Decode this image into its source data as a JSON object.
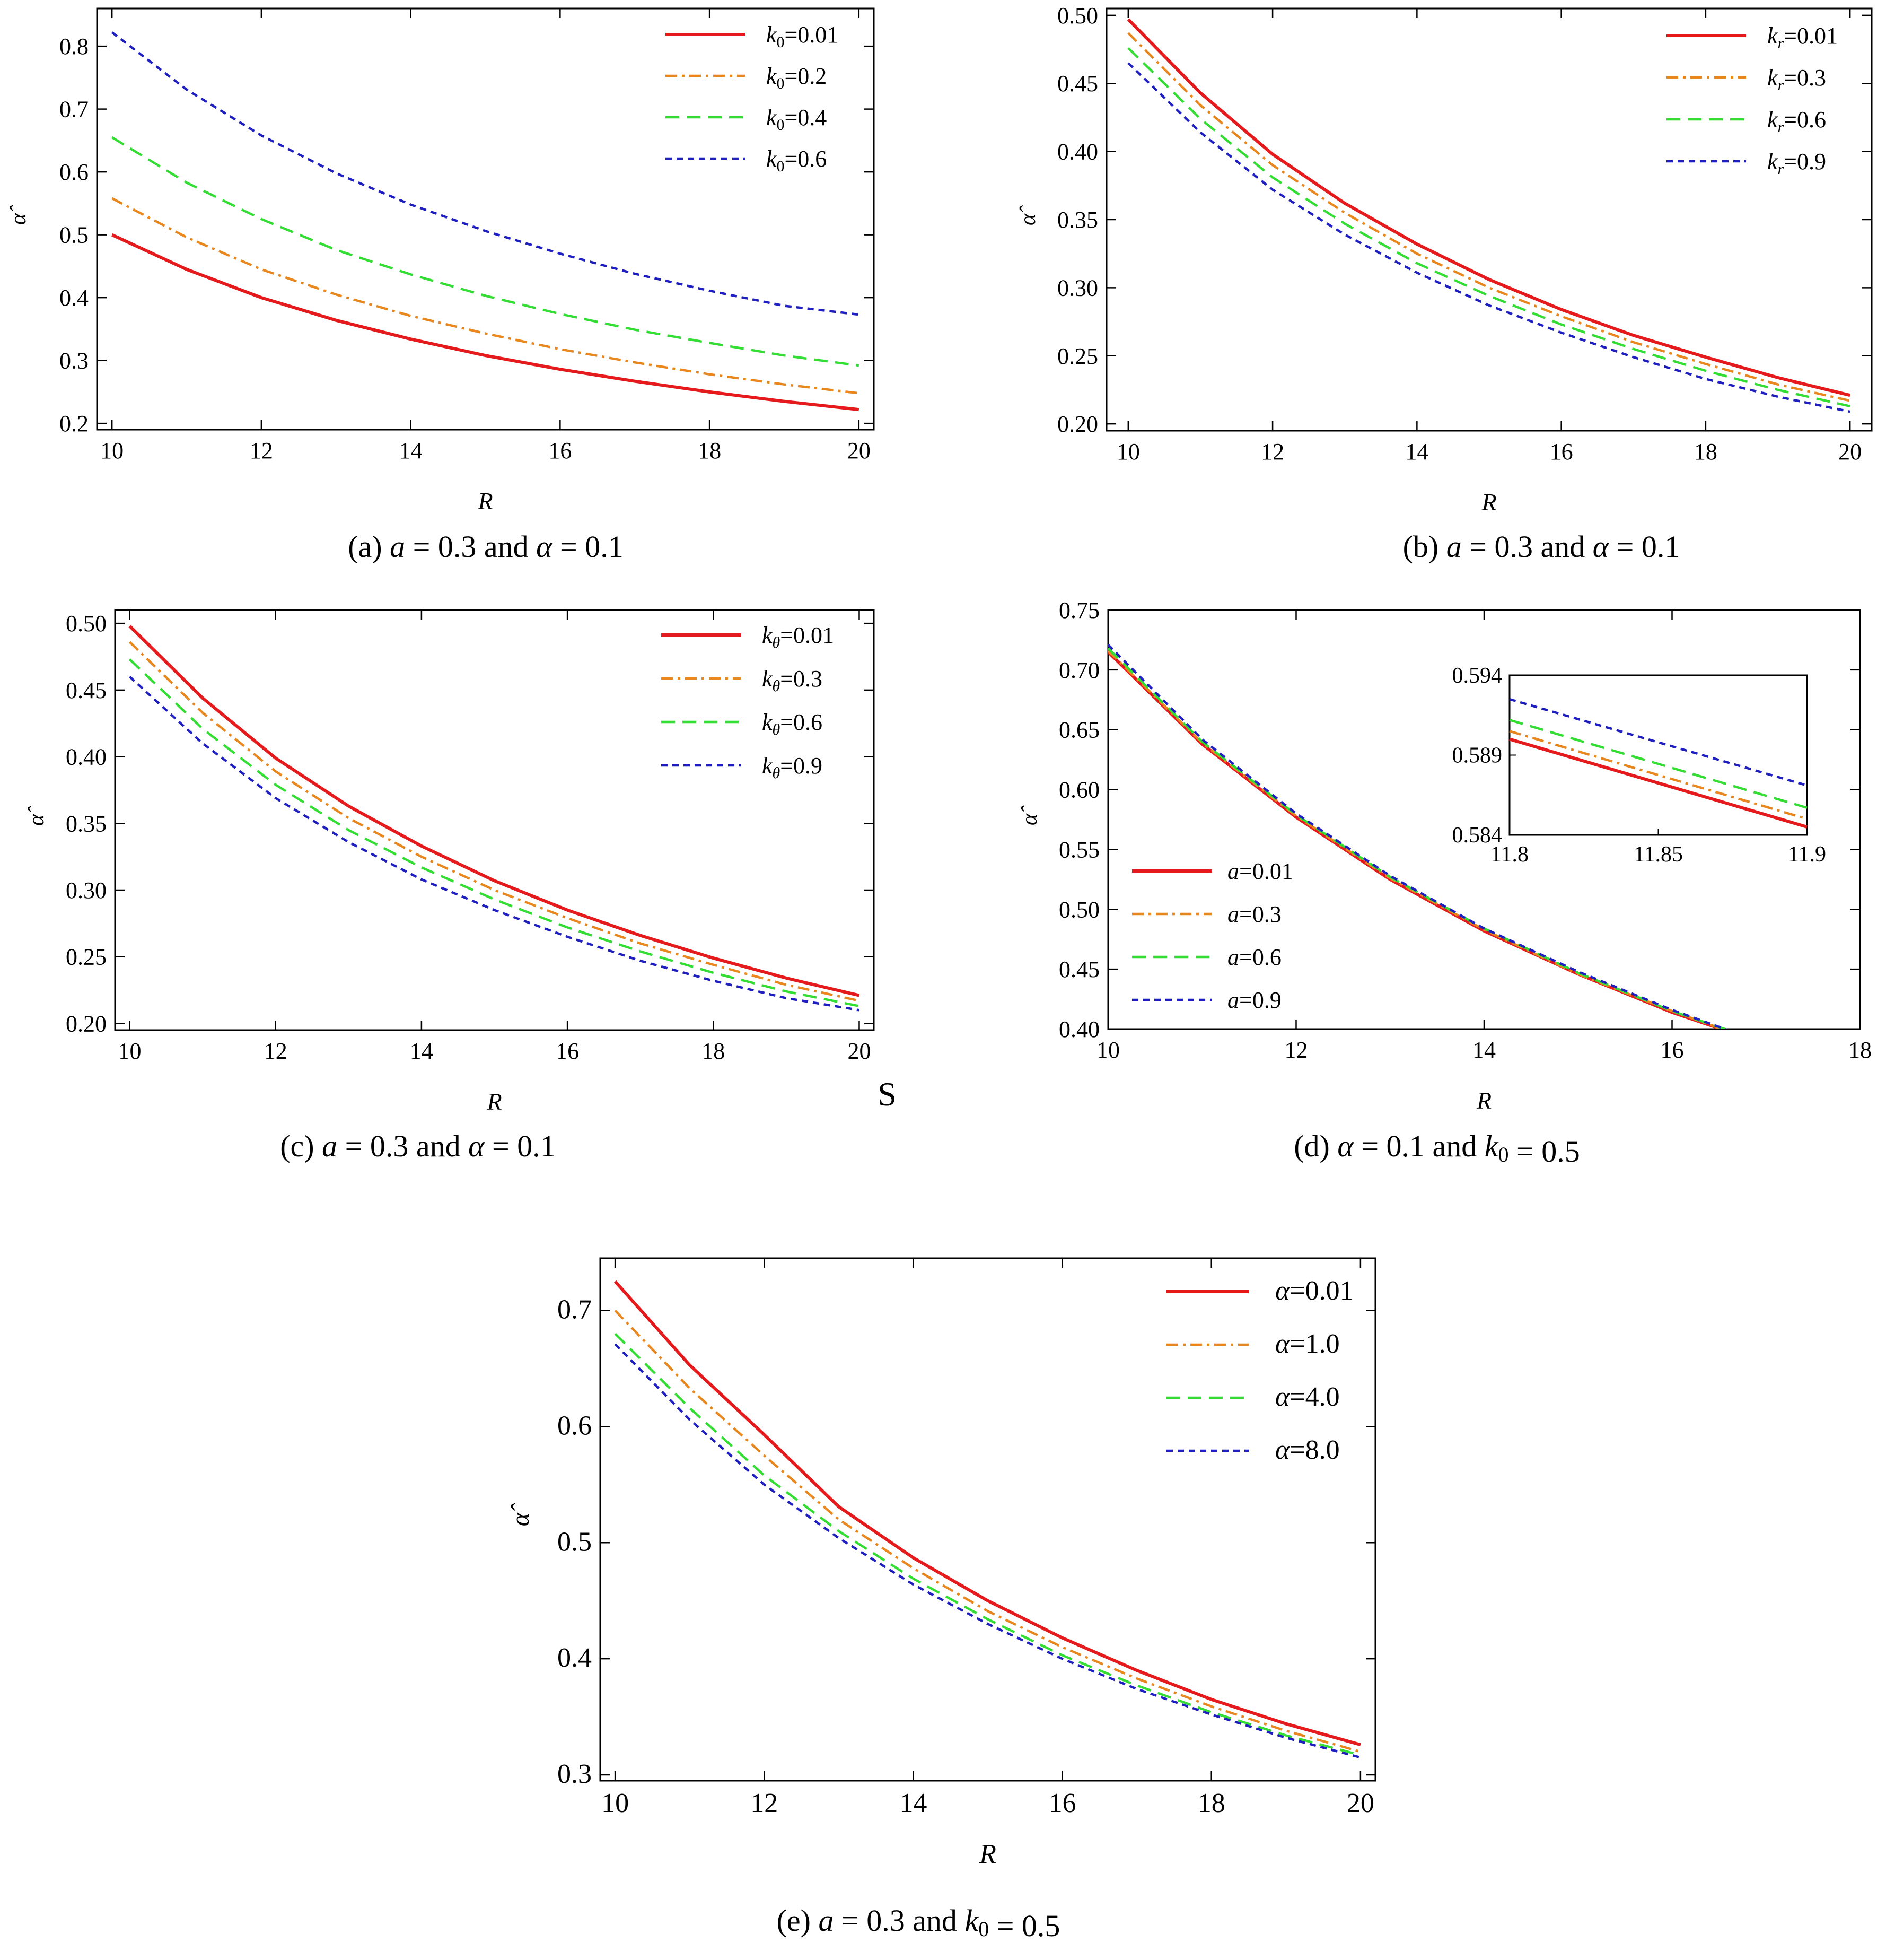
{
  "chart_data": [
    {
      "type": "line",
      "panel": "a",
      "caption": "(a) a = 0.3 and α = 0.1",
      "xlabel": "R",
      "ylabel": "α̂",
      "xlim": [
        9.8,
        20.2
      ],
      "ylim": [
        0.19,
        0.86
      ],
      "xticks": [
        10,
        12,
        14,
        16,
        18,
        20
      ],
      "yticks": [
        0.2,
        0.3,
        0.4,
        0.5,
        0.6,
        0.7,
        0.8
      ],
      "x": [
        10,
        11,
        12,
        13,
        14,
        15,
        16,
        17,
        18,
        19,
        20
      ],
      "legend_position": "top-right",
      "series": [
        {
          "name": "k0=0.01",
          "sym": "k",
          "sub": "0",
          "val": "=0.01",
          "color": "#e41a1c",
          "dash": "solid",
          "values": [
            0.5,
            0.445,
            0.4,
            0.364,
            0.334,
            0.308,
            0.286,
            0.267,
            0.25,
            0.235,
            0.222
          ]
        },
        {
          "name": "k0=0.2",
          "sym": "k",
          "sub": "0",
          "val": "=0.2",
          "color": "#e8871e",
          "dash": "dashdot",
          "values": [
            0.558,
            0.496,
            0.445,
            0.405,
            0.371,
            0.343,
            0.318,
            0.297,
            0.278,
            0.262,
            0.248
          ]
        },
        {
          "name": "k0=0.4",
          "sym": "k",
          "sub": "0",
          "val": "=0.4",
          "color": "#33dd33",
          "dash": "dashed",
          "values": [
            0.655,
            0.583,
            0.525,
            0.476,
            0.437,
            0.403,
            0.374,
            0.349,
            0.328,
            0.308,
            0.292
          ]
        },
        {
          "name": "k0=0.6",
          "sym": "k",
          "sub": "0",
          "val": "=0.6",
          "color": "#1f1fbf",
          "dash": "dotted",
          "values": [
            0.822,
            0.731,
            0.658,
            0.598,
            0.548,
            0.506,
            0.47,
            0.438,
            0.411,
            0.387,
            0.373
          ]
        }
      ]
    },
    {
      "type": "line",
      "panel": "b",
      "caption": "(b) a = 0.3 and α = 0.1",
      "xlabel": "R",
      "ylabel": "α̂",
      "xlim": [
        9.7,
        20.3
      ],
      "ylim": [
        0.195,
        0.505
      ],
      "xticks": [
        10,
        12,
        14,
        16,
        18,
        20
      ],
      "yticks": [
        0.2,
        0.25,
        0.3,
        0.35,
        0.4,
        0.45,
        0.5
      ],
      "ytick_labels": [
        "0.20",
        "0.25",
        "0.30",
        "0.35",
        "0.40",
        "0.45",
        "0.50"
      ],
      "x": [
        10,
        11,
        12,
        13,
        14,
        15,
        16,
        17,
        18,
        19,
        20
      ],
      "legend_position": "top-right",
      "series": [
        {
          "name": "kr=0.01",
          "sym": "k",
          "sub": "r",
          "val": "=0.01",
          "color": "#e41a1c",
          "dash": "solid",
          "values": [
            0.497,
            0.443,
            0.398,
            0.362,
            0.332,
            0.306,
            0.284,
            0.265,
            0.249,
            0.234,
            0.221
          ]
        },
        {
          "name": "kr=0.3",
          "sym": "k",
          "sub": "r",
          "val": "=0.3",
          "color": "#e8871e",
          "dash": "dashdot",
          "values": [
            0.487,
            0.434,
            0.39,
            0.355,
            0.325,
            0.3,
            0.279,
            0.26,
            0.244,
            0.229,
            0.217
          ]
        },
        {
          "name": "kr=0.6",
          "sym": "k",
          "sub": "r",
          "val": "=0.6",
          "color": "#33dd33",
          "dash": "dashed",
          "values": [
            0.476,
            0.424,
            0.381,
            0.347,
            0.318,
            0.294,
            0.273,
            0.255,
            0.239,
            0.225,
            0.213
          ]
        },
        {
          "name": "kr=0.9",
          "sym": "k",
          "sub": "r",
          "val": "=0.9",
          "color": "#1f1fbf",
          "dash": "dotted",
          "values": [
            0.465,
            0.414,
            0.372,
            0.339,
            0.311,
            0.287,
            0.267,
            0.249,
            0.233,
            0.22,
            0.209
          ]
        }
      ]
    },
    {
      "type": "line",
      "panel": "c",
      "caption": "(c) a = 0.3 and α = 0.1",
      "xlabel": "R",
      "ylabel": "α̂",
      "xlim": [
        9.8,
        20.2
      ],
      "ylim": [
        0.195,
        0.51
      ],
      "xticks": [
        10,
        12,
        14,
        16,
        18,
        20
      ],
      "yticks": [
        0.2,
        0.25,
        0.3,
        0.35,
        0.4,
        0.45,
        0.5
      ],
      "ytick_labels": [
        "0.20",
        "0.25",
        "0.30",
        "0.35",
        "0.40",
        "0.45",
        "0.50"
      ],
      "x": [
        10,
        11,
        12,
        13,
        14,
        15,
        16,
        17,
        18,
        19,
        20
      ],
      "legend_position": "top-right",
      "annotation": "S",
      "series": [
        {
          "name": "kθ=0.01",
          "sym": "k",
          "sub": "θ",
          "val": "=0.01",
          "color": "#e41a1c",
          "dash": "solid",
          "values": [
            0.498,
            0.444,
            0.399,
            0.363,
            0.333,
            0.307,
            0.285,
            0.266,
            0.249,
            0.234,
            0.221
          ]
        },
        {
          "name": "kθ=0.3",
          "sym": "k",
          "sub": "θ",
          "val": "=0.3",
          "color": "#e8871e",
          "dash": "dashdot",
          "values": [
            0.486,
            0.433,
            0.389,
            0.354,
            0.325,
            0.3,
            0.279,
            0.26,
            0.244,
            0.229,
            0.217
          ]
        },
        {
          "name": "kθ=0.6",
          "sym": "k",
          "sub": "θ",
          "val": "=0.6",
          "color": "#33dd33",
          "dash": "dashed",
          "values": [
            0.473,
            0.421,
            0.379,
            0.345,
            0.317,
            0.293,
            0.272,
            0.254,
            0.238,
            0.224,
            0.213
          ]
        },
        {
          "name": "kθ=0.9",
          "sym": "k",
          "sub": "θ",
          "val": "=0.9",
          "color": "#1f1fbf",
          "dash": "dotted",
          "values": [
            0.46,
            0.41,
            0.369,
            0.336,
            0.308,
            0.285,
            0.265,
            0.247,
            0.232,
            0.219,
            0.21
          ]
        }
      ]
    },
    {
      "type": "line",
      "panel": "d",
      "caption": "(d) α = 0.1 and k0 = 0.5",
      "xlabel": "R",
      "ylabel": "α̂",
      "xlim": [
        10,
        18
      ],
      "ylim": [
        0.4,
        0.75
      ],
      "xticks": [
        10,
        12,
        14,
        16,
        18
      ],
      "yticks": [
        0.4,
        0.45,
        0.5,
        0.55,
        0.6,
        0.65,
        0.7,
        0.75
      ],
      "ytick_labels": [
        "0.40",
        "0.45",
        "0.50",
        "0.55",
        "0.60",
        "0.65",
        "0.70",
        "0.75"
      ],
      "x": [
        10,
        11,
        12,
        13,
        14,
        15,
        16,
        16.6
      ],
      "legend_position": "bottom-left",
      "series": [
        {
          "name": "a=0.01",
          "sym": "a",
          "sub": "",
          "val": "=0.01",
          "color": "#e41a1c",
          "dash": "solid",
          "values": [
            0.715,
            0.638,
            0.577,
            0.525,
            0.482,
            0.446,
            0.414,
            0.398
          ]
        },
        {
          "name": "a=0.3",
          "sym": "a",
          "sub": "",
          "val": "=0.3",
          "color": "#e8871e",
          "dash": "dashdot",
          "values": [
            0.716,
            0.639,
            0.578,
            0.526,
            0.483,
            0.446,
            0.415,
            0.398
          ]
        },
        {
          "name": "a=0.6",
          "sym": "a",
          "sub": "",
          "val": "=0.6",
          "color": "#33dd33",
          "dash": "dashed",
          "values": [
            0.718,
            0.64,
            0.579,
            0.527,
            0.484,
            0.447,
            0.415,
            0.399
          ]
        },
        {
          "name": "a=0.9",
          "sym": "a",
          "sub": "",
          "val": "=0.9",
          "color": "#1f1fbf",
          "dash": "dotted",
          "values": [
            0.721,
            0.642,
            0.58,
            0.528,
            0.484,
            0.448,
            0.416,
            0.399
          ]
        }
      ],
      "inset": {
        "xlim": [
          11.8,
          11.9
        ],
        "ylim": [
          0.584,
          0.594
        ],
        "xticks": [
          11.8,
          11.85,
          11.9
        ],
        "yticks": [
          0.584,
          0.589,
          0.594
        ],
        "x": [
          11.8,
          11.9
        ],
        "values": [
          [
            0.59,
            0.5845
          ],
          [
            0.5905,
            0.585
          ],
          [
            0.5912,
            0.5857
          ],
          [
            0.5925,
            0.5871
          ]
        ]
      }
    },
    {
      "type": "line",
      "panel": "e",
      "caption": "(e) a = 0.3 and k0 = 0.5",
      "xlabel": "R",
      "ylabel": "α̂",
      "xlim": [
        9.8,
        20.2
      ],
      "ylim": [
        0.295,
        0.745
      ],
      "xticks": [
        10,
        12,
        14,
        16,
        18,
        20
      ],
      "yticks": [
        0.3,
        0.4,
        0.5,
        0.6,
        0.7
      ],
      "x": [
        10,
        11,
        12,
        13,
        14,
        15,
        16,
        17,
        18,
        19,
        20
      ],
      "legend_position": "top-right",
      "series": [
        {
          "name": "α=0.01",
          "sym": "α",
          "sub": "",
          "val": "=0.01",
          "color": "#e41a1c",
          "dash": "solid",
          "values": [
            0.725,
            0.653,
            0.593,
            0.531,
            0.487,
            0.45,
            0.418,
            0.39,
            0.365,
            0.344,
            0.326
          ]
        },
        {
          "name": "α=1.0",
          "sym": "α",
          "sub": "",
          "val": "=1.0",
          "color": "#e8871e",
          "dash": "dashdot",
          "values": [
            0.7,
            0.633,
            0.575,
            0.52,
            0.478,
            0.441,
            0.41,
            0.383,
            0.359,
            0.338,
            0.32
          ]
        },
        {
          "name": "α=4.0",
          "sym": "α",
          "sub": "",
          "val": "=4.0",
          "color": "#33dd33",
          "dash": "dashed",
          "values": [
            0.68,
            0.616,
            0.558,
            0.51,
            0.469,
            0.434,
            0.403,
            0.377,
            0.354,
            0.334,
            0.317
          ]
        },
        {
          "name": "α=8.0",
          "sym": "α",
          "sub": "",
          "val": "=8.0",
          "color": "#1f1fbf",
          "dash": "dotted",
          "values": [
            0.671,
            0.606,
            0.55,
            0.504,
            0.464,
            0.43,
            0.4,
            0.374,
            0.352,
            0.332,
            0.315
          ]
        }
      ]
    }
  ]
}
